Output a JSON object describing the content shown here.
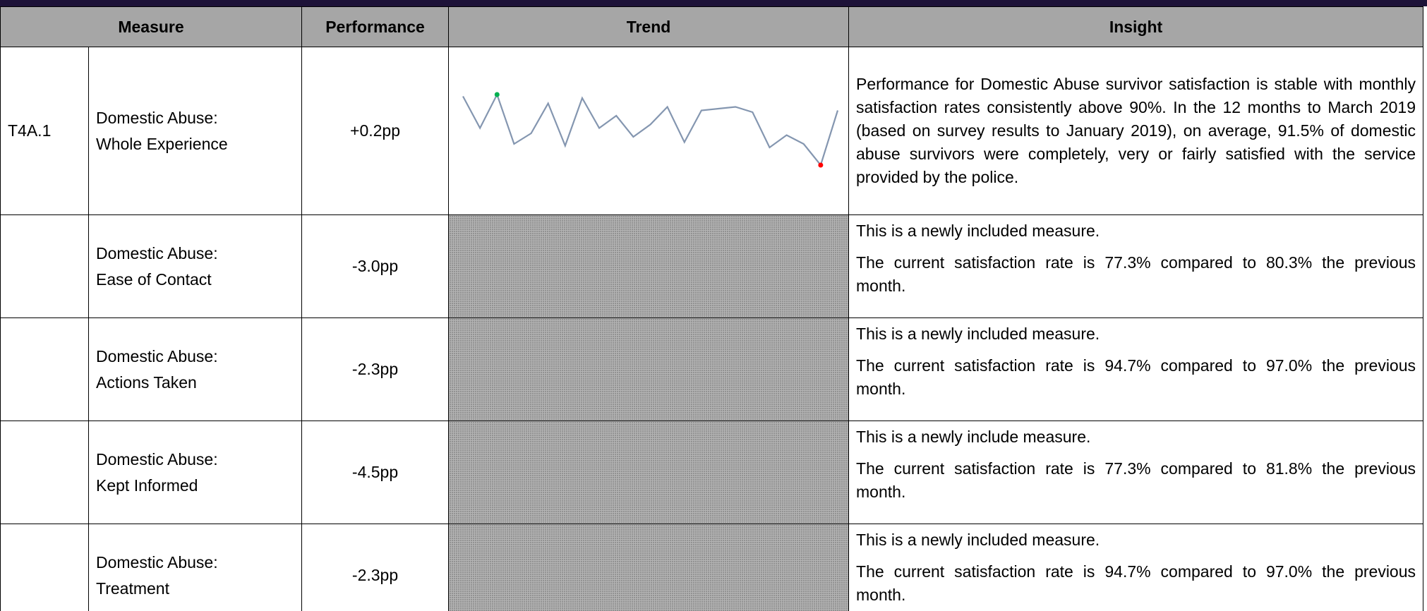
{
  "header": [
    "Measure",
    "Performance",
    "Trend",
    "Insight"
  ],
  "rows": [
    {
      "id": "T4A.1",
      "measure": [
        "Domestic Abuse:",
        "Whole Experience"
      ],
      "performance": "+0.2pp",
      "trend": {
        "type": "line",
        "color": "#8496b0",
        "high_color": "#00b050",
        "low_color": "#ff0000",
        "values": [
          93.9,
          92.1,
          94.0,
          91.2,
          91.8,
          93.5,
          91.1,
          93.8,
          92.1,
          92.8,
          91.6,
          92.3,
          93.3,
          91.3,
          93.1,
          93.2,
          93.3,
          93.0,
          91.0,
          91.7,
          91.2,
          90.0,
          93.1
        ]
      },
      "insight": [
        "Performance for Domestic Abuse survivor satisfaction is stable with monthly satisfaction rates consistently above 90%.  In the 12 months to March 2019 (based on survey results to January 2019), on average, 91.5% of domestic abuse survivors were completely, very or fairly satisfied with the service provided by the police."
      ]
    },
    {
      "measure": [
        "Domestic Abuse:",
        "Ease of Contact"
      ],
      "performance": "-3.0pp",
      "insight": [
        "This is a newly included measure.",
        "The current satisfaction rate is 77.3% compared to 80.3% the previous month."
      ]
    },
    {
      "measure": [
        "Domestic Abuse:",
        "Actions Taken"
      ],
      "performance": "-2.3pp",
      "insight": [
        "This is a newly included measure.",
        "The current satisfaction rate is 94.7% compared to 97.0% the previous month."
      ]
    },
    {
      "measure": [
        "Domestic Abuse:",
        "Kept Informed"
      ],
      "performance": "-4.5pp",
      "insight": [
        "This is a newly include measure.",
        "The current satisfaction rate is 77.3% compared to 81.8% the previous month."
      ]
    },
    {
      "measure": [
        "Domestic Abuse:",
        "Treatment"
      ],
      "performance": "-2.3pp",
      "insight": [
        "This is a newly included measure.",
        "The current satisfaction rate is 94.7% compared to 97.0% the previous month."
      ]
    }
  ]
}
